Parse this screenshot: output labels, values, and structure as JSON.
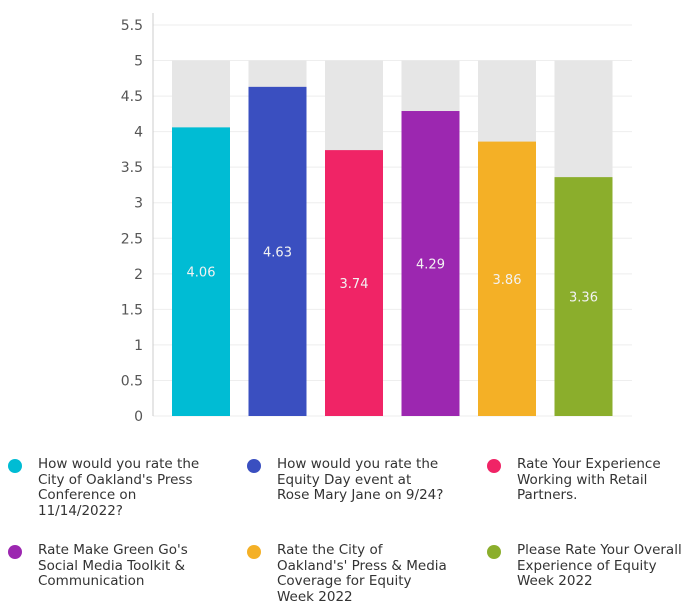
{
  "chart_data": {
    "type": "bar",
    "categories": [
      "How would you rate the City of Oakland's Press Conference on 11/14/2022?",
      "How would you rate the Equity Day event at Rose Mary Jane on 9/24?",
      "Rate Your Experience Working with Retail Partners.",
      "Rate Make Green Go's Social Media Toolkit & Communication",
      "Rate the City of Oakland's' Press & Media Coverage for Equity Week 2022",
      "Please Rate Your Overall Experience of Equity Week 2022"
    ],
    "values": [
      4.06,
      4.63,
      3.74,
      4.29,
      3.86,
      3.36
    ],
    "value_labels": [
      "4.06",
      "4.63",
      "3.74",
      "4.29",
      "3.86",
      "3.36"
    ],
    "background_max": 5,
    "colors": [
      "#00bcd4",
      "#3a4fc0",
      "#f02466",
      "#9c27b0",
      "#f4b026",
      "#8bae2c"
    ],
    "background_color": "#e6e6e6",
    "ylim": [
      0,
      5.5
    ],
    "yticks": [
      "0",
      "0.5",
      "1",
      "1.5",
      "2",
      "2.5",
      "3",
      "3.5",
      "4",
      "4.5",
      "5",
      "5.5"
    ],
    "title": "",
    "xlabel": "",
    "ylabel": "",
    "grid": true,
    "legend_position": "bottom"
  }
}
